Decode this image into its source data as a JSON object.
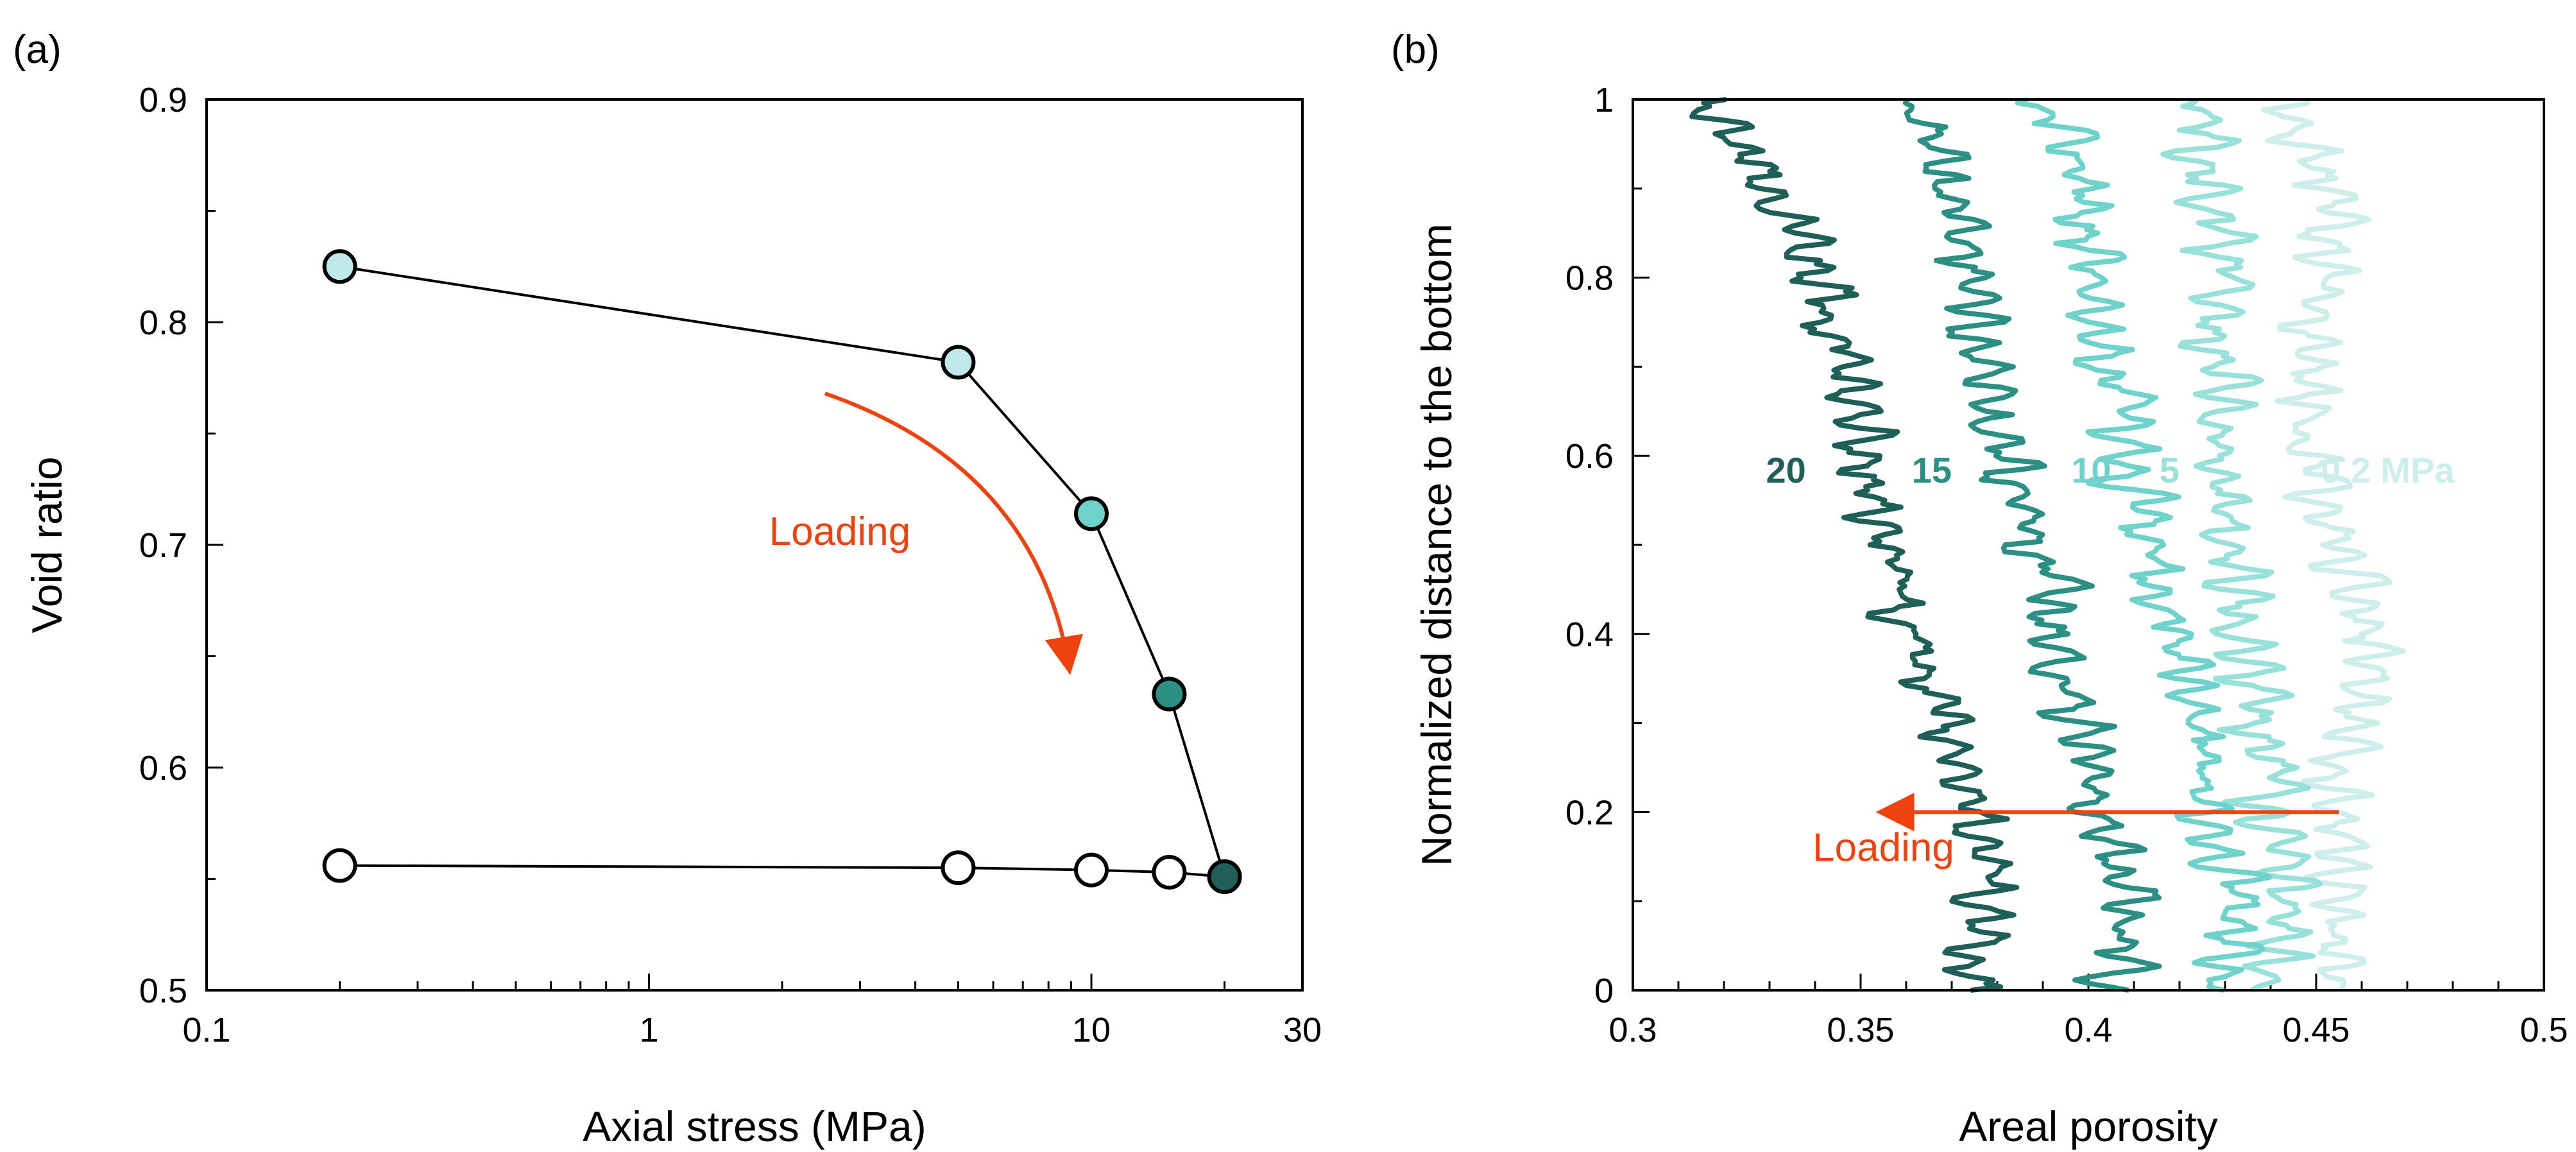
{
  "chart_data": [
    {
      "panel_label": "(a)",
      "type": "line",
      "xlabel": "Axial stress (MPa)",
      "ylabel": "Void ratio",
      "xscale": "log",
      "xlim": [
        0.1,
        30
      ],
      "ylim": [
        0.5,
        0.9
      ],
      "x_ticks": [
        0.1,
        1,
        10,
        30
      ],
      "x_tick_labels": [
        "0.1",
        "1",
        "10",
        "30"
      ],
      "y_ticks": [
        0.5,
        0.6,
        0.7,
        0.8,
        0.9
      ],
      "y_tick_labels": [
        "0.5",
        "0.6",
        "0.7",
        "0.8",
        "0.9"
      ],
      "grid": false,
      "series": [
        {
          "x": [
            0.2,
            5,
            10,
            15,
            20
          ],
          "y": [
            0.825,
            0.782,
            0.714,
            0.633,
            0.551
          ],
          "marker_colors": [
            "#bfe9ea",
            "#bfe9ea",
            "#6fd3cc",
            "#2c8f84",
            "#1e5f58"
          ]
        },
        {
          "x": [
            0.2,
            5,
            10,
            15,
            20
          ],
          "y": [
            0.556,
            0.555,
            0.554,
            0.553,
            0.551
          ],
          "marker_colors": [
            "#ffffff",
            "#ffffff",
            "#ffffff",
            "#ffffff",
            "#1e5f58"
          ]
        }
      ],
      "annotations": [
        {
          "text": "Loading",
          "x": 2.7,
          "y": 0.7,
          "color": "#f0420f"
        }
      ]
    },
    {
      "panel_label": "(b)",
      "type": "line",
      "xlabel": "Areal porosity",
      "ylabel": "Normalized distance to the bottom",
      "xlim": [
        0.3,
        0.5
      ],
      "ylim": [
        0,
        1
      ],
      "x_ticks": [
        0.3,
        0.35,
        0.4,
        0.45,
        0.5
      ],
      "x_tick_labels": [
        "0.3",
        "0.35",
        "0.4",
        "0.45",
        "0.5"
      ],
      "y_ticks": [
        0,
        0.2,
        0.4,
        0.6,
        0.8,
        1
      ],
      "y_tick_labels": [
        "0",
        "0.2",
        "0.4",
        "0.6",
        "0.8",
        "1"
      ],
      "grid": false,
      "series": [
        {
          "label": "20",
          "color": "#1e5f58",
          "profile": [
            [
              0,
              0.375
            ],
            [
              0.1,
              0.378
            ],
            [
              0.2,
              0.375
            ],
            [
              0.3,
              0.368
            ],
            [
              0.4,
              0.362
            ],
            [
              0.5,
              0.357
            ],
            [
              0.6,
              0.35
            ],
            [
              0.7,
              0.347
            ],
            [
              0.8,
              0.343
            ],
            [
              0.9,
              0.332
            ],
            [
              1.0,
              0.313
            ]
          ]
        },
        {
          "label": "15",
          "color": "#2c8f84",
          "profile": [
            [
              0,
              0.408
            ],
            [
              0.1,
              0.41
            ],
            [
              0.2,
              0.402
            ],
            [
              0.3,
              0.398
            ],
            [
              0.4,
              0.394
            ],
            [
              0.5,
              0.387
            ],
            [
              0.6,
              0.381
            ],
            [
              0.7,
              0.377
            ],
            [
              0.8,
              0.374
            ],
            [
              0.9,
              0.37
            ],
            [
              1.0,
              0.361
            ]
          ]
        },
        {
          "label": "10",
          "color": "#6fd3cc",
          "profile": [
            [
              0,
              0.43
            ],
            [
              0.1,
              0.432
            ],
            [
              0.2,
              0.426
            ],
            [
              0.3,
              0.422
            ],
            [
              0.4,
              0.418
            ],
            [
              0.5,
              0.413
            ],
            [
              0.6,
              0.408
            ],
            [
              0.7,
              0.405
            ],
            [
              0.8,
              0.402
            ],
            [
              0.9,
              0.4
            ],
            [
              1.0,
              0.392
            ]
          ]
        },
        {
          "label": "5",
          "color": "#98e0da",
          "profile": [
            [
              0,
              0.442
            ],
            [
              0.1,
              0.444
            ],
            [
              0.2,
              0.44
            ],
            [
              0.3,
              0.437
            ],
            [
              0.4,
              0.436
            ],
            [
              0.5,
              0.433
            ],
            [
              0.6,
              0.428
            ],
            [
              0.7,
              0.428
            ],
            [
              0.8,
              0.43
            ],
            [
              0.9,
              0.428
            ],
            [
              1.0,
              0.424
            ]
          ]
        },
        {
          "label": "0.2 MPa",
          "color": "#cdeeea",
          "profile": [
            [
              0,
              0.452
            ],
            [
              0.1,
              0.455
            ],
            [
              0.2,
              0.455
            ],
            [
              0.3,
              0.458
            ],
            [
              0.4,
              0.462
            ],
            [
              0.5,
              0.454
            ],
            [
              0.6,
              0.45
            ],
            [
              0.7,
              0.448
            ],
            [
              0.8,
              0.452
            ],
            [
              0.9,
              0.452
            ],
            [
              1.0,
              0.44
            ]
          ]
        }
      ],
      "annotations": [
        {
          "text": "Loading",
          "x": 0.355,
          "y": 0.145,
          "color": "#f0420f",
          "arrow_from": [
            0.455,
            0.2
          ],
          "arrow_to": [
            0.355,
            0.2
          ]
        }
      ]
    }
  ]
}
